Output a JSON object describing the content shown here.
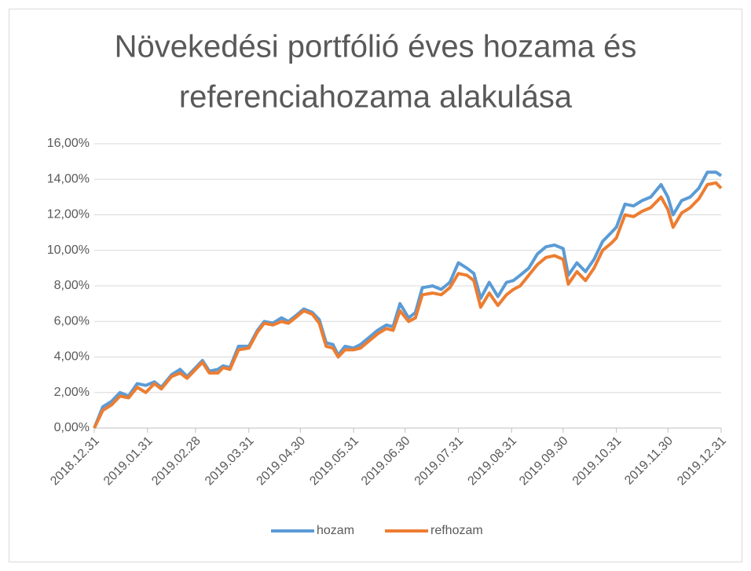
{
  "chart_data": {
    "type": "line",
    "title": [
      "Növekedési portfólió éves hozama és",
      "referenciahozama alakulása"
    ],
    "x": [
      "2018.12.31",
      "2019.01.05",
      "2019.01.10",
      "2019.01.15",
      "2019.01.20",
      "2019.01.25",
      "2019.01.30",
      "2019.02.04",
      "2019.02.08",
      "2019.02.14",
      "2019.02.19",
      "2019.02.23",
      "2019.02.28",
      "2019.03.04",
      "2019.03.08",
      "2019.03.13",
      "2019.03.16",
      "2019.03.20",
      "2019.03.25",
      "2019.03.31",
      "2019.04.05",
      "2019.04.09",
      "2019.04.14",
      "2019.04.19",
      "2019.04.23",
      "2019.04.27",
      "2019.05.02",
      "2019.05.07",
      "2019.05.11",
      "2019.05.15",
      "2019.05.19",
      "2019.05.22",
      "2019.05.26",
      "2019.05.31",
      "2019.06.04",
      "2019.06.09",
      "2019.06.14",
      "2019.06.19",
      "2019.06.23",
      "2019.06.27",
      "2019.07.02",
      "2019.07.06",
      "2019.07.10",
      "2019.07.16",
      "2019.07.21",
      "2019.07.26",
      "2019.07.31",
      "2019.08.05",
      "2019.08.09",
      "2019.08.13",
      "2019.08.18",
      "2019.08.23",
      "2019.08.28",
      "2019.09.01",
      "2019.09.05",
      "2019.09.10",
      "2019.09.15",
      "2019.09.20",
      "2019.09.25",
      "2019.09.30",
      "2019.10.03",
      "2019.10.08",
      "2019.10.13",
      "2019.10.18",
      "2019.10.23",
      "2019.10.28",
      "2019.10.31",
      "2019.11.05",
      "2019.11.10",
      "2019.11.15",
      "2019.11.20",
      "2019.11.26",
      "2019.11.30",
      "2019.12.03",
      "2019.12.08",
      "2019.12.13",
      "2019.12.18",
      "2019.12.23",
      "2019.12.28",
      "2019.12.31"
    ],
    "series": [
      {
        "name": "hozam",
        "color": "#5b9bd5",
        "values": [
          0,
          1.2,
          1.5,
          2.0,
          1.8,
          2.5,
          2.4,
          2.6,
          2.3,
          3.0,
          3.3,
          2.9,
          3.4,
          3.8,
          3.2,
          3.3,
          3.5,
          3.4,
          4.6,
          4.6,
          5.5,
          6.0,
          5.9,
          6.2,
          6.0,
          6.3,
          6.7,
          6.5,
          6.1,
          4.8,
          4.7,
          4.1,
          4.6,
          4.5,
          4.7,
          5.1,
          5.5,
          5.8,
          5.7,
          7.0,
          6.2,
          6.5,
          7.9,
          8.0,
          7.8,
          8.2,
          9.3,
          9.0,
          8.7,
          7.3,
          8.2,
          7.4,
          8.2,
          8.3,
          8.6,
          9.0,
          9.8,
          10.2,
          10.3,
          10.1,
          8.6,
          9.3,
          8.8,
          9.5,
          10.5,
          11.0,
          11.3,
          12.6,
          12.5,
          12.8,
          13.0,
          13.7,
          13.0,
          12.0,
          12.8,
          13.0,
          13.5,
          14.4,
          14.4,
          14.2
        ]
      },
      {
        "name": "refhozam",
        "color": "#ed7d31",
        "values": [
          0,
          1.0,
          1.3,
          1.8,
          1.7,
          2.3,
          2.0,
          2.5,
          2.2,
          2.9,
          3.1,
          2.8,
          3.3,
          3.7,
          3.1,
          3.1,
          3.4,
          3.3,
          4.4,
          4.5,
          5.4,
          5.9,
          5.8,
          6.0,
          5.9,
          6.2,
          6.6,
          6.4,
          5.9,
          4.6,
          4.5,
          4.0,
          4.4,
          4.4,
          4.5,
          4.9,
          5.3,
          5.6,
          5.5,
          6.6,
          6.0,
          6.2,
          7.5,
          7.6,
          7.5,
          7.9,
          8.7,
          8.6,
          8.3,
          6.8,
          7.6,
          6.9,
          7.5,
          7.8,
          8.0,
          8.6,
          9.2,
          9.6,
          9.7,
          9.5,
          8.1,
          8.8,
          8.3,
          9.0,
          10.0,
          10.4,
          10.7,
          12.0,
          11.9,
          12.2,
          12.4,
          13.0,
          12.3,
          11.3,
          12.1,
          12.4,
          12.9,
          13.7,
          13.8,
          13.5
        ]
      }
    ],
    "xlim": [
      "2018.12.31",
      "2019.12.31"
    ],
    "xticks": [
      "2018.12.31",
      "2019.01.31",
      "2019.02.28",
      "2019.03.31",
      "2019.04.30",
      "2019.05.31",
      "2019.06.30",
      "2019.07.31",
      "2019.08.31",
      "2019.09.30",
      "2019.10.31",
      "2019.11.30",
      "2019.12.31"
    ],
    "ylim": [
      0,
      16
    ],
    "yticks": [
      {
        "value": 0,
        "label": "0,00%"
      },
      {
        "value": 2,
        "label": "2,00%"
      },
      {
        "value": 4,
        "label": "4,00%"
      },
      {
        "value": 6,
        "label": "6,00%"
      },
      {
        "value": 8,
        "label": "8,00%"
      },
      {
        "value": 10,
        "label": "10,00%"
      },
      {
        "value": 12,
        "label": "12,00%"
      },
      {
        "value": 14,
        "label": "14,00%"
      },
      {
        "value": 16,
        "label": "16,00%"
      }
    ],
    "grid": true,
    "legend": "bottom"
  }
}
